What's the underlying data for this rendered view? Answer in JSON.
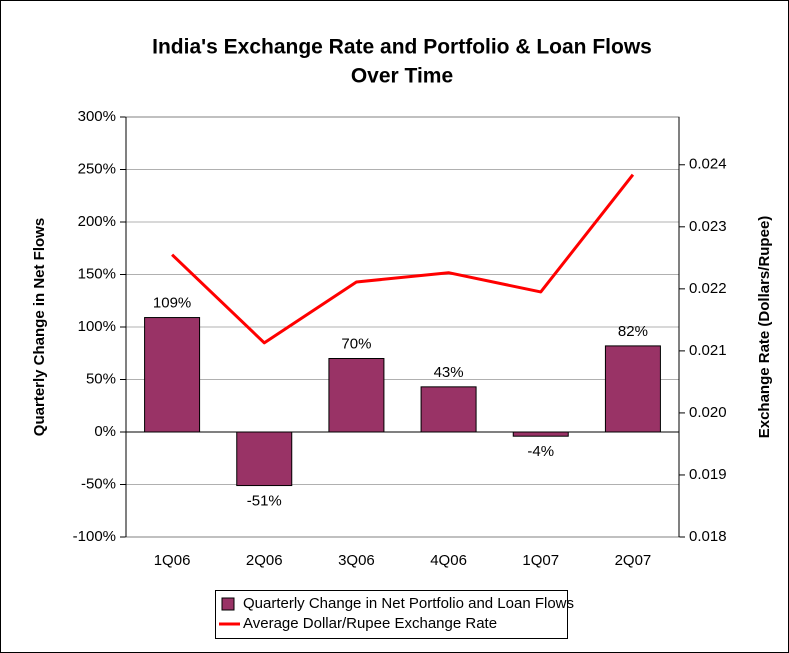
{
  "chart_data": {
    "type": "bar",
    "title": [
      "India's Exchange Rate and Portfolio & Loan Flows",
      "Over Time"
    ],
    "ylabel": "Quarterly Change in Net Flows",
    "y2label": "Exchange Rate (Dollars/Rupee)",
    "categories": [
      "1Q06",
      "2Q06",
      "3Q06",
      "4Q06",
      "1Q07",
      "2Q07"
    ],
    "series": [
      {
        "name": "Quarterly Change in Net Portfolio and Loan Flows",
        "type": "bar",
        "color": "#993366",
        "values": [
          109,
          -51,
          70,
          43,
          -4,
          82
        ],
        "value_labels": [
          "109%",
          "-51%",
          "70%",
          "43%",
          "-4%",
          "82%"
        ]
      },
      {
        "name": "Average Dollar/Rupee Exchange Rate",
        "type": "line",
        "axis": "y2",
        "color": "#ff0000",
        "values": [
          0.02255,
          0.02113,
          0.02211,
          0.02226,
          0.02195,
          0.02384
        ]
      }
    ],
    "ylim": [
      -100,
      300
    ],
    "yticks": [
      {
        "value": -100,
        "label": "-100%"
      },
      {
        "value": -50,
        "label": "-50%"
      },
      {
        "value": 0,
        "label": "0%"
      },
      {
        "value": 50,
        "label": "50%"
      },
      {
        "value": 100,
        "label": "100%"
      },
      {
        "value": 150,
        "label": "150%"
      },
      {
        "value": 200,
        "label": "200%"
      },
      {
        "value": 250,
        "label": "250%"
      },
      {
        "value": 300,
        "label": "300%"
      }
    ],
    "y2lim": [
      0.018,
      0.02477
    ],
    "y2ticks": [
      0.018,
      0.019,
      {
        "value": 0.02,
        "label": "0.020"
      },
      0.021,
      0.022,
      0.023,
      0.024
    ],
    "grid": true,
    "legend": "bottom"
  }
}
